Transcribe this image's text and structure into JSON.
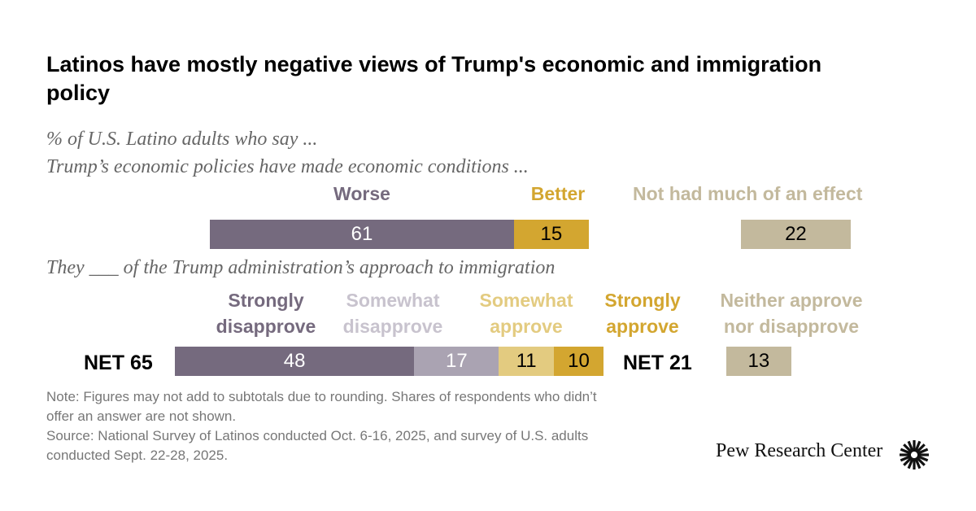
{
  "title": "Latinos have mostly negative views of Trump's economic and immigration policy",
  "subtitle": "% of U.S. Latino adults who say ...",
  "colors": {
    "strong_neg": "#756a7e",
    "some_neg": "#aaa3b2",
    "some_pos": "#e3cb80",
    "strong_pos": "#d3a630",
    "neutral": "#c3b99d"
  },
  "chart_data": [
    {
      "type": "bar",
      "title": "Trump’s economic policies have made economic conditions ...",
      "categories": [
        "Worse",
        "Better",
        "Not had much of an effect"
      ],
      "values": [
        61,
        15,
        22
      ]
    },
    {
      "type": "bar",
      "title": "They ___ of the Trump administration’s approach to immigration",
      "categories": [
        "Strongly disapprove",
        "Somewhat disapprove",
        "Somewhat approve",
        "Strongly approve",
        "Neither approve nor disapprove"
      ],
      "values": [
        48,
        17,
        11,
        10,
        13
      ],
      "nets": {
        "disapprove": "NET 65",
        "approve": "NET 21"
      }
    }
  ],
  "labels": {
    "strongly_disapprove": [
      "Strongly",
      "disapprove"
    ],
    "somewhat_disapprove": [
      "Somewhat",
      "disapprove"
    ],
    "somewhat_approve": [
      "Somewhat",
      "approve"
    ],
    "strongly_approve": [
      "Strongly",
      "approve"
    ],
    "neither": [
      "Neither approve",
      "nor disapprove"
    ]
  },
  "note": "Note: Figures may not add to subtotals due to rounding. Shares of respondents who didn’t offer an answer are not shown.",
  "source": "Source: National Survey of Latinos conducted Oct. 6-16, 2025, and survey of U.S. adults conducted Sept. 22-28, 2025.",
  "brand": "Pew Research Center"
}
